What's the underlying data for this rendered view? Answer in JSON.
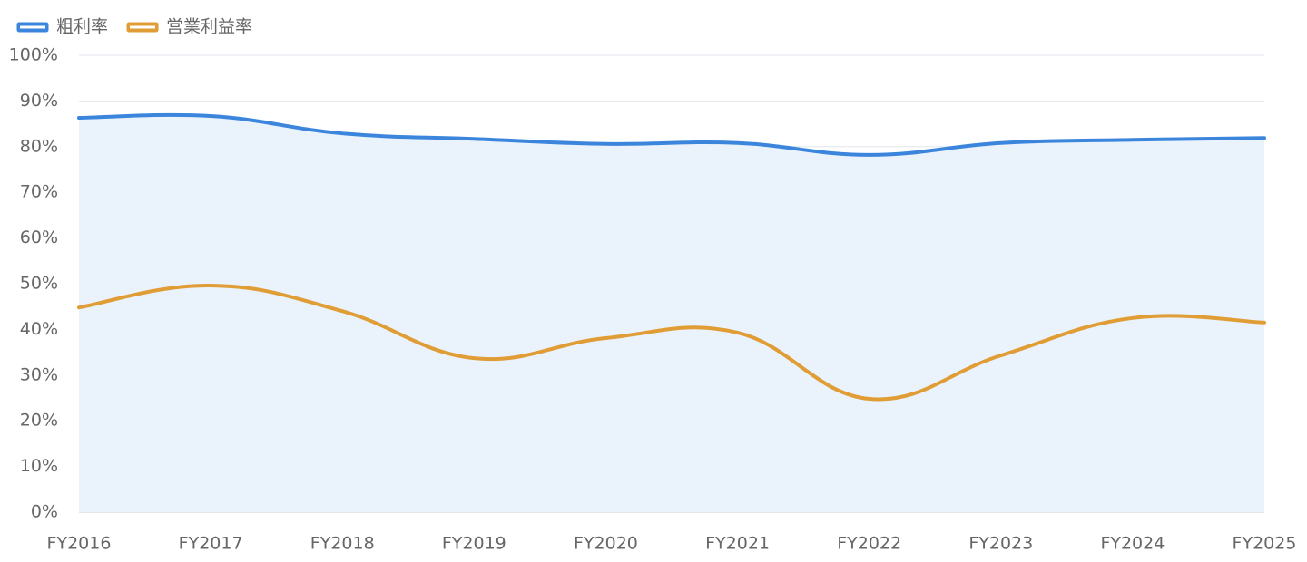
{
  "chart_data": {
    "type": "line",
    "categories": [
      "FY2016",
      "FY2017",
      "FY2018",
      "FY2019",
      "FY2020",
      "FY2021",
      "FY2022",
      "FY2023",
      "FY2024",
      "FY2025"
    ],
    "series": [
      {
        "name": "粗利率",
        "color": "#3b86dc",
        "area": true,
        "area_color": "#eaf2fb",
        "values": [
          86.3,
          86.7,
          82.9,
          81.7,
          80.6,
          80.8,
          78.2,
          80.8,
          81.5,
          81.9
        ]
      },
      {
        "name": "営業利益率",
        "color": "#e09d35",
        "area": false,
        "values": [
          44.8,
          49.6,
          44.0,
          33.7,
          38.1,
          39.3,
          24.8,
          34.3,
          42.5,
          41.5
        ]
      }
    ],
    "ylim": [
      0,
      100
    ],
    "yticks": [
      {
        "value": 0,
        "label": "0%"
      },
      {
        "value": 10,
        "label": "10%"
      },
      {
        "value": 20,
        "label": "20%"
      },
      {
        "value": 30,
        "label": "30%"
      },
      {
        "value": 40,
        "label": "40%"
      },
      {
        "value": 50,
        "label": "50%"
      },
      {
        "value": 60,
        "label": "60%"
      },
      {
        "value": 70,
        "label": "70%"
      },
      {
        "value": 80,
        "label": "80%"
      },
      {
        "value": 90,
        "label": "90%"
      },
      {
        "value": 100,
        "label": "100%"
      }
    ],
    "grid": true,
    "legend": "top-left"
  }
}
